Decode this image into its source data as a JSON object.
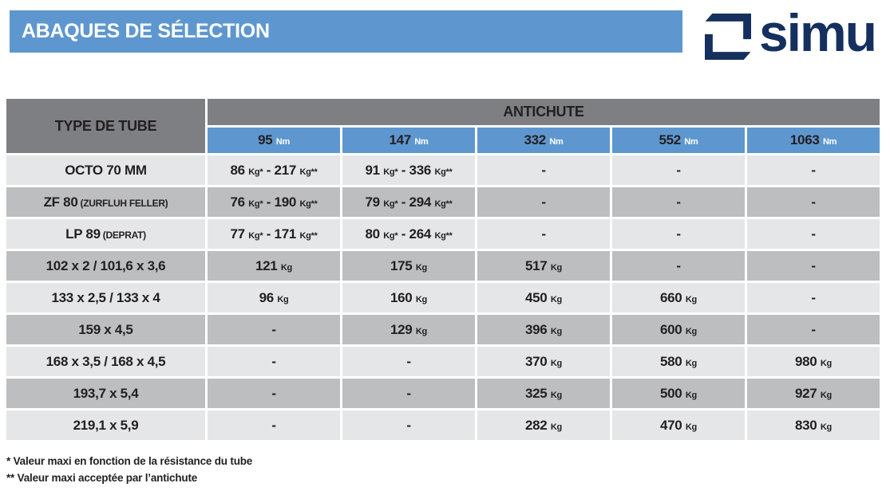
{
  "page": {
    "title": "ABAQUES DE SÉLECTION"
  },
  "logo": {
    "text": "simu"
  },
  "colors": {
    "banner_blue": "#5e97d0",
    "header_gray": "#7d7f83",
    "row_light": "#e5e6e7",
    "row_dark": "#bcbec0",
    "logo_navy": "#15305e",
    "text_dark": "#231f20"
  },
  "table": {
    "col1_header": "TYPE DE TUBE",
    "group_header": "ANTICHUTE",
    "columns": [
      {
        "value": "95",
        "unit": "Nm"
      },
      {
        "value": "147",
        "unit": "Nm"
      },
      {
        "value": "332",
        "unit": "Nm"
      },
      {
        "value": "552",
        "unit": "Nm"
      },
      {
        "value": "1063",
        "unit": "Nm"
      }
    ],
    "rows": [
      {
        "tube": {
          "main": "OCTO 70 MM",
          "sub": ""
        },
        "cells": [
          "86 Kg* - 217 Kg**",
          "91 Kg* - 336 Kg**",
          "-",
          "-",
          "-"
        ]
      },
      {
        "tube": {
          "main": "ZF 80",
          "sub": "(ZURFLUH FELLER)"
        },
        "cells": [
          "76 Kg* - 190 Kg**",
          "79 Kg* - 294 Kg**",
          "-",
          "-",
          "-"
        ]
      },
      {
        "tube": {
          "main": "LP 89",
          "sub": "(DEPRAT)"
        },
        "cells": [
          "77 Kg* - 171 Kg**",
          "80 Kg* - 264 Kg**",
          "-",
          "-",
          "-"
        ]
      },
      {
        "tube": {
          "main": "102 x 2  /  101,6 x 3,6",
          "sub": ""
        },
        "cells": [
          "121 Kg",
          "175 Kg",
          "517 Kg",
          "-",
          "-"
        ]
      },
      {
        "tube": {
          "main": "133 x 2,5  /  133 x 4",
          "sub": ""
        },
        "cells": [
          "96 Kg",
          "160 Kg",
          "450 Kg",
          "660 Kg",
          "-"
        ]
      },
      {
        "tube": {
          "main": "159 x 4,5",
          "sub": ""
        },
        "cells": [
          "-",
          "129 Kg",
          "396 Kg",
          "600 Kg",
          "-"
        ]
      },
      {
        "tube": {
          "main": "168 x 3,5  /  168 x 4,5",
          "sub": ""
        },
        "cells": [
          "-",
          "-",
          "370 Kg",
          "580 Kg",
          "980 Kg"
        ]
      },
      {
        "tube": {
          "main": "193,7 x 5,4",
          "sub": ""
        },
        "cells": [
          "-",
          "-",
          "325 Kg",
          "500 Kg",
          "927 Kg"
        ]
      },
      {
        "tube": {
          "main": "219,1 x 5,9",
          "sub": ""
        },
        "cells": [
          "-",
          "-",
          "282 Kg",
          "470 Kg",
          "830 Kg"
        ]
      }
    ]
  },
  "footnotes": [
    "* Valeur maxi en fonction de la résistance du tube",
    "** Valeur maxi acceptée par l’antichute"
  ]
}
